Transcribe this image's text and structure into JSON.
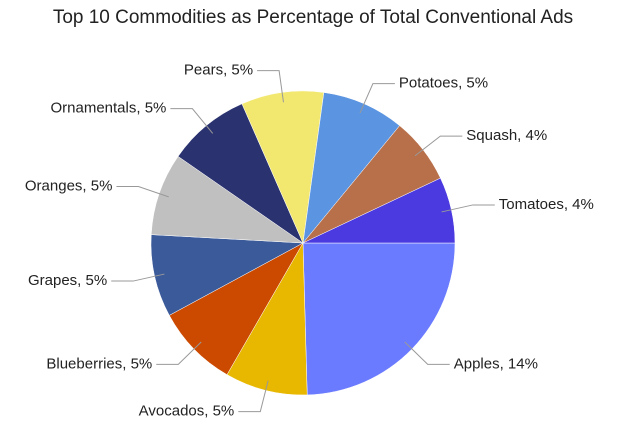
{
  "chart_data": {
    "type": "pie",
    "title": "Top 10 Commodities as Percentage of Total Conventional Ads",
    "labels": [
      "Apples, 14%",
      "Avocados, 5%",
      "Blueberries, 5%",
      "Grapes, 5%",
      "Oranges, 5%",
      "Ornamentals, 5%",
      "Pears, 5%",
      "Potatoes, 5%",
      "Squash, 4%",
      "Tomatoes, 4%"
    ],
    "values": [
      14,
      5,
      5,
      5,
      5,
      5,
      5,
      5,
      4,
      4
    ],
    "colors": [
      "#6b7bff",
      "#e8b800",
      "#cc4a00",
      "#3a5a9a",
      "#c0c0c0",
      "#2a3270",
      "#f2e870",
      "#5b94e0",
      "#b8704a",
      "#4a3ae0"
    ]
  }
}
